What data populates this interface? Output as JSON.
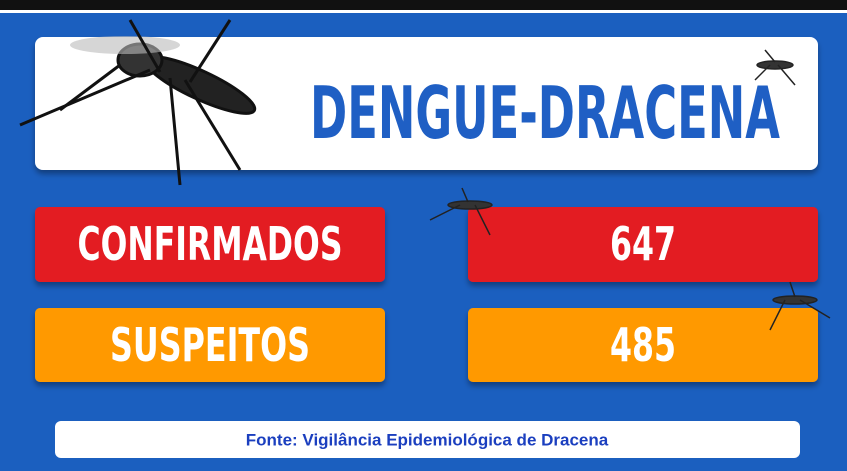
{
  "header": {
    "title": "DENGUE-DRACENA"
  },
  "rows": [
    {
      "label": "CONFIRMADOS",
      "value": 647
    },
    {
      "label": "SUSPEITOS",
      "value": 485
    }
  ],
  "footer": {
    "source": "Fonte: Vigilância Epidemiológica de Dracena"
  }
}
